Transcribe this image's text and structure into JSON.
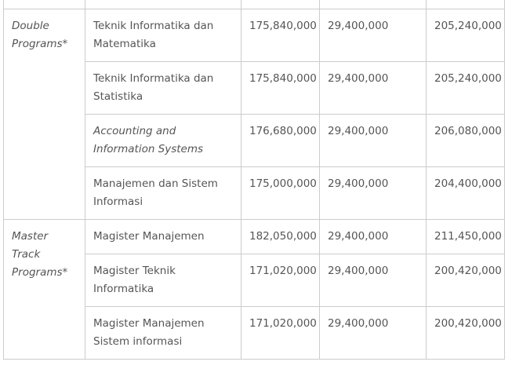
{
  "groups": [
    {
      "label": "Double Programs*",
      "rows": [
        {
          "program": "Teknik Informatika dan Matematika",
          "italic": false,
          "a": "175,840,000",
          "b": "29,400,000",
          "total": "205,240,000"
        },
        {
          "program": "Teknik Informatika dan Statistika",
          "italic": false,
          "a": "175,840,000",
          "b": "29,400,000",
          "total": "205,240,000"
        },
        {
          "program": "Accounting and Information Systems",
          "italic": true,
          "a": "176,680,000",
          "b": "29,400,000",
          "total": "206,080,000"
        },
        {
          "program": "Manajemen dan Sistem Informasi",
          "italic": false,
          "a": "175,000,000",
          "b": "29,400,000",
          "total": "204,400,000"
        }
      ]
    },
    {
      "label": "Master Track Programs*",
      "rows": [
        {
          "program": "Magister Manajemen",
          "italic": false,
          "a": "182,050,000",
          "b": "29,400,000",
          "total": "211,450,000"
        },
        {
          "program": "Magister Teknik Informatika",
          "italic": false,
          "a": "171,020,000",
          "b": "29,400,000",
          "total": "200,420,000"
        },
        {
          "program": "Magister Manajemen Sistem informasi",
          "italic": false,
          "a": "171,020,000",
          "b": "29,400,000",
          "total": "200,420,000"
        }
      ]
    }
  ]
}
